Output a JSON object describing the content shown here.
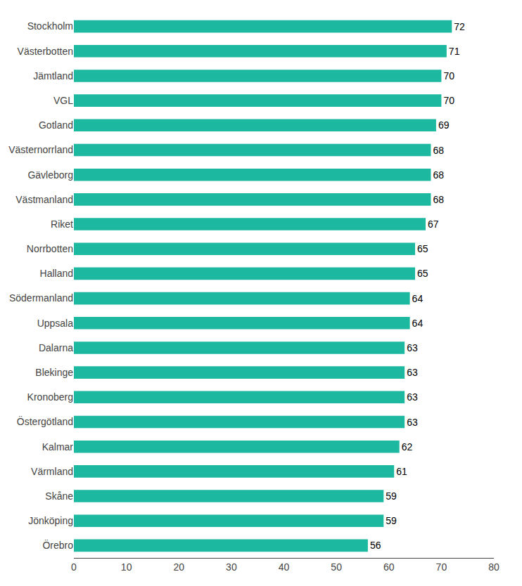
{
  "chart_data": {
    "type": "bar",
    "orientation": "horizontal",
    "categories": [
      "Stockholm",
      "Västerbotten",
      "Jämtland",
      "VGL",
      "Gotland",
      "Västernorrland",
      "Gävleborg",
      "Västmanland",
      "Riket",
      "Norrbotten",
      "Halland",
      "Södermanland",
      "Uppsala",
      "Dalarna",
      "Blekinge",
      "Kronoberg",
      "Östergötland",
      "Kalmar",
      "Värmland",
      "Skåne",
      "Jönköping",
      "Örebro"
    ],
    "values": [
      72,
      71,
      70,
      70,
      69,
      68,
      68,
      68,
      67,
      65,
      65,
      64,
      64,
      63,
      63,
      63,
      63,
      62,
      61,
      59,
      59,
      56
    ],
    "color": "#1DB8A0",
    "xlim": [
      0,
      80
    ],
    "xticks": [
      0,
      10,
      20,
      30,
      40,
      50,
      60,
      70,
      80
    ],
    "grid": false,
    "data_labels": true
  }
}
